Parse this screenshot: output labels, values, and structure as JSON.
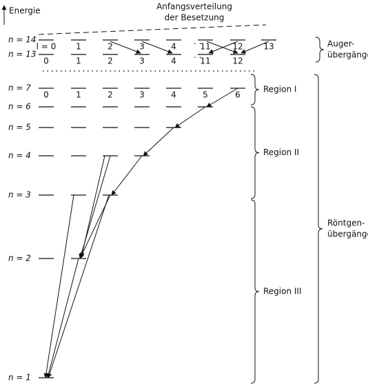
{
  "axis_label": "Energie",
  "annotation": [
    "Anfangsverteilung",
    "der Besetzung"
  ],
  "levels": [
    {
      "label": "n = 14",
      "sublevels": [
        "l = 0",
        "1",
        "2",
        "3",
        "4",
        "11",
        "12",
        "13"
      ]
    },
    {
      "label": "n = 13",
      "sublevels": [
        "0",
        "1",
        "2",
        "3",
        "4",
        "11",
        "12"
      ]
    },
    {
      "label": "n = 7",
      "sublevels": [
        "0",
        "1",
        "2",
        "3",
        "4",
        "5",
        "6"
      ]
    },
    {
      "label": "n = 6"
    },
    {
      "label": "n = 5"
    },
    {
      "label": "n = 4"
    },
    {
      "label": "n = 3"
    },
    {
      "label": "n = 2"
    },
    {
      "label": "n = 1"
    }
  ],
  "brackets": [
    {
      "label": [
        "Auger-",
        "übergänge"
      ]
    },
    {
      "label": [
        "Region I"
      ]
    },
    {
      "label": [
        "Region II"
      ]
    },
    {
      "label": [
        "Region III"
      ]
    },
    {
      "label": [
        "Röntgen-",
        "übergänge"
      ]
    }
  ]
}
